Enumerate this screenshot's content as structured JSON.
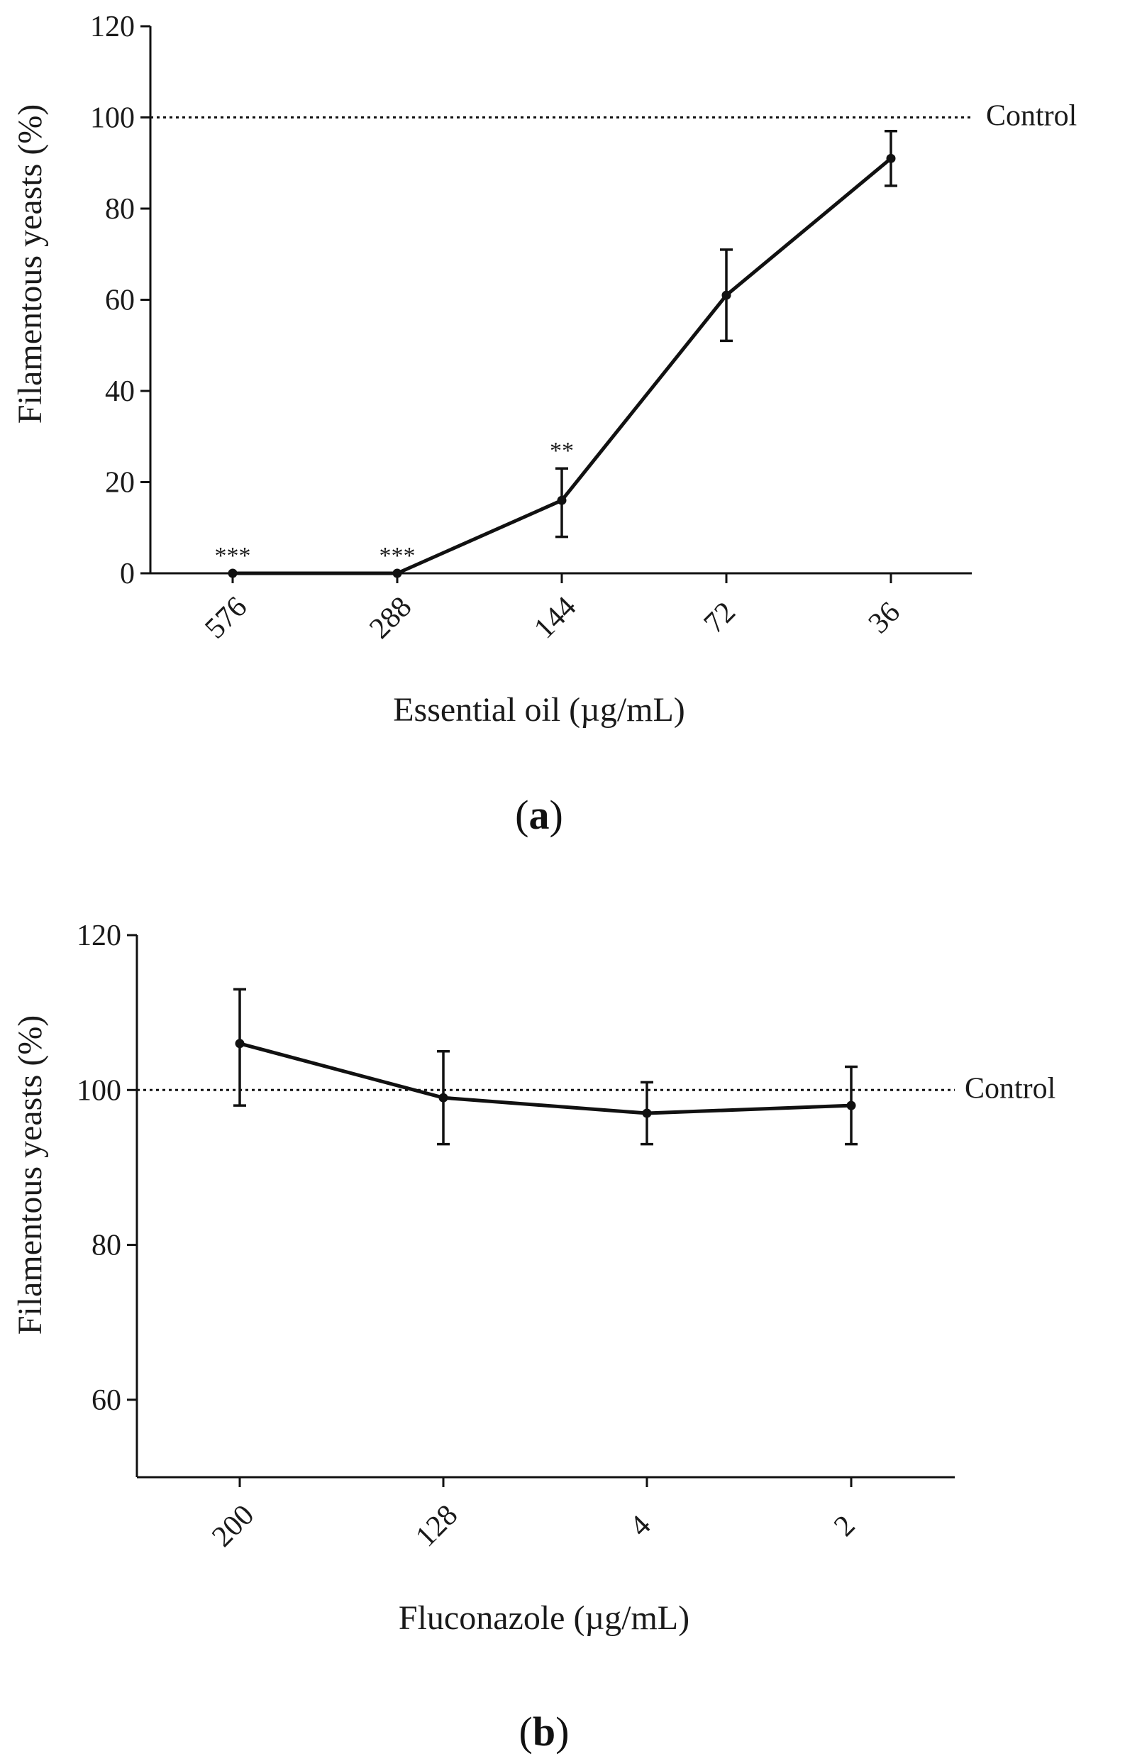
{
  "chart_data": [
    {
      "type": "line",
      "id": "a",
      "panel_label": "a",
      "xlabel": "Essential oil (µg/mL)",
      "ylabel": "Filamentous yeasts (%)",
      "ylim": [
        0,
        120
      ],
      "yticks": [
        "0",
        "20",
        "40",
        "60",
        "80",
        "100",
        "120"
      ],
      "categories": [
        "576",
        "288",
        "144",
        "72",
        "36"
      ],
      "series": [
        {
          "name": "Essential oil",
          "values": [
            0,
            0,
            16,
            61,
            91
          ],
          "err_low": [
            0,
            0,
            8,
            51,
            85
          ],
          "err_high": [
            0,
            0,
            23,
            71,
            97
          ]
        }
      ],
      "significance": [
        "***",
        "***",
        "**",
        "",
        ""
      ],
      "reference_line": {
        "label": "Control",
        "value": 100
      }
    },
    {
      "type": "line",
      "id": "b",
      "panel_label": "b",
      "xlabel": "Fluconazole (µg/mL)",
      "ylabel": "Filamentous yeasts (%)",
      "ylim": [
        50,
        120
      ],
      "yticks": [
        "60",
        "80",
        "100",
        "120"
      ],
      "categories": [
        "200",
        "128",
        "4",
        "2"
      ],
      "series": [
        {
          "name": "Fluconazole",
          "values": [
            106,
            99,
            97,
            98
          ],
          "err_low": [
            98,
            93,
            93,
            93
          ],
          "err_high": [
            113,
            105,
            101,
            103
          ]
        }
      ],
      "significance": [
        "",
        "",
        "",
        ""
      ],
      "reference_line": {
        "label": "Control",
        "value": 100
      }
    }
  ]
}
